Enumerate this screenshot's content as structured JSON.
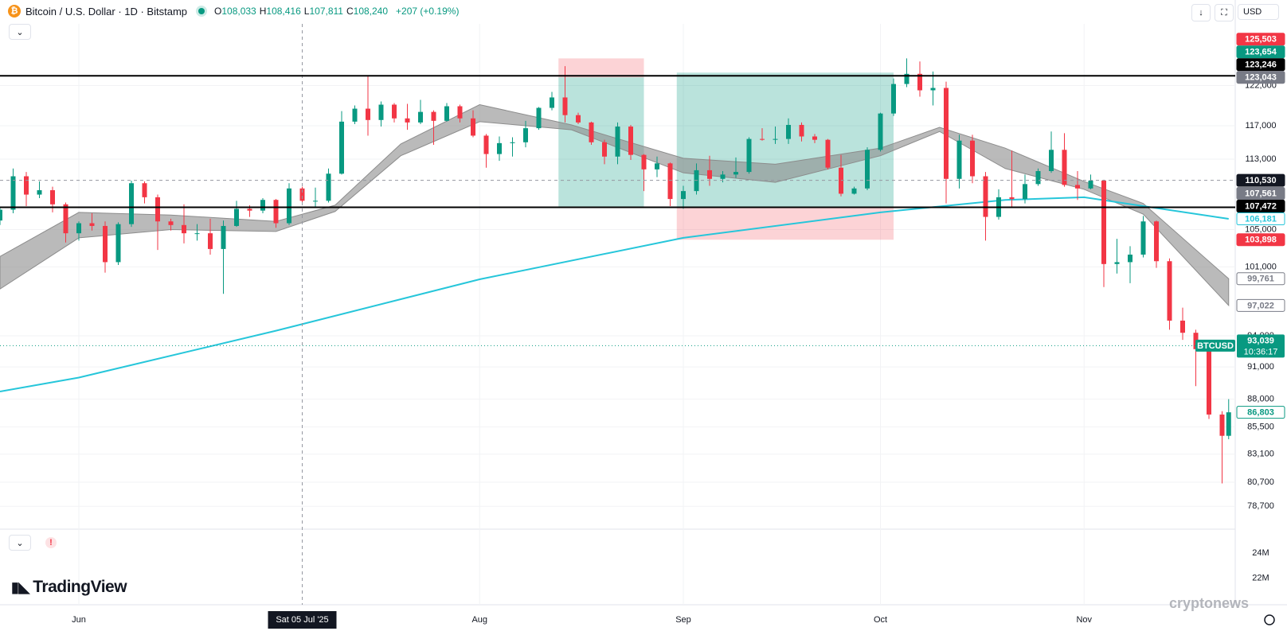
{
  "header": {
    "symbol": "Bitcoin / U.S. Dollar · 1D · Bitstamp",
    "ohlc": [
      {
        "key": "O",
        "value": "108,033"
      },
      {
        "key": "H",
        "value": "108,416"
      },
      {
        "key": "L",
        "value": "107,811"
      },
      {
        "key": "C",
        "value": "108,240"
      }
    ],
    "change": "+207 (+0.19%)",
    "currency": "USD"
  },
  "ui": {
    "logo": "TradingView",
    "watermark": "cryptonews"
  },
  "chart_data": {
    "type": "candlestick",
    "log_scale": true,
    "grid": true,
    "up_color": "#089981",
    "down_color": "#f23645",
    "xlim": [
      "2025-05-20",
      "2025-11-24"
    ],
    "xticks": [
      {
        "value": "2025-06-01",
        "label": "Jun"
      },
      {
        "value": "2025-08-01",
        "label": "Aug"
      },
      {
        "value": "2025-09-01",
        "label": "Sep"
      },
      {
        "value": "2025-10-01",
        "label": "Oct"
      },
      {
        "value": "2025-11-01",
        "label": "Nov"
      }
    ],
    "ylim": [
      76850,
      130100
    ],
    "yticks": [
      {
        "value": 122000,
        "label": "122,000"
      },
      {
        "value": 117000,
        "label": "117,000"
      },
      {
        "value": 113000,
        "label": "113,000"
      },
      {
        "value": 105000,
        "label": "105,000"
      },
      {
        "value": 101000,
        "label": "101,000"
      },
      {
        "value": 94000,
        "label": "94,000"
      },
      {
        "value": 91000,
        "label": "91,000"
      },
      {
        "value": 88000,
        "label": "88,000"
      },
      {
        "value": 85500,
        "label": "85,500"
      },
      {
        "value": 83100,
        "label": "83,100"
      },
      {
        "value": 80700,
        "label": "80,700"
      },
      {
        "value": 78700,
        "label": "78,700"
      }
    ],
    "volume_lim": [
      19900000,
      25900000
    ],
    "volume_ticks": [
      {
        "value": 24000000,
        "label": "24M"
      },
      {
        "value": 22000000,
        "label": "22M"
      }
    ],
    "x": [
      "2025-05-20",
      "2025-05-22",
      "2025-05-24",
      "2025-05-26",
      "2025-05-28",
      "2025-05-30",
      "2025-06-01",
      "2025-06-03",
      "2025-06-05",
      "2025-06-07",
      "2025-06-09",
      "2025-06-11",
      "2025-06-13",
      "2025-06-15",
      "2025-06-17",
      "2025-06-19",
      "2025-06-21",
      "2025-06-23",
      "2025-06-25",
      "2025-06-27",
      "2025-06-29",
      "2025-07-01",
      "2025-07-03",
      "2025-07-05",
      "2025-07-07",
      "2025-07-09",
      "2025-07-11",
      "2025-07-13",
      "2025-07-15",
      "2025-07-17",
      "2025-07-19",
      "2025-07-21",
      "2025-07-23",
      "2025-07-25",
      "2025-07-27",
      "2025-07-29",
      "2025-07-31",
      "2025-08-02",
      "2025-08-04",
      "2025-08-06",
      "2025-08-08",
      "2025-08-10",
      "2025-08-12",
      "2025-08-14",
      "2025-08-16",
      "2025-08-18",
      "2025-08-20",
      "2025-08-22",
      "2025-08-24",
      "2025-08-26",
      "2025-08-28",
      "2025-08-30",
      "2025-09-01",
      "2025-09-03",
      "2025-09-05",
      "2025-09-07",
      "2025-09-09",
      "2025-09-11",
      "2025-09-13",
      "2025-09-15",
      "2025-09-17",
      "2025-09-19",
      "2025-09-21",
      "2025-09-23",
      "2025-09-25",
      "2025-09-27",
      "2025-09-29",
      "2025-10-01",
      "2025-10-03",
      "2025-10-05",
      "2025-10-07",
      "2025-10-09",
      "2025-10-11",
      "2025-10-13",
      "2025-10-15",
      "2025-10-17",
      "2025-10-19",
      "2025-10-21",
      "2025-10-23",
      "2025-10-25",
      "2025-10-27",
      "2025-10-29",
      "2025-10-31",
      "2025-11-02",
      "2025-11-04",
      "2025-11-06",
      "2025-11-08",
      "2025-11-10",
      "2025-11-12",
      "2025-11-14",
      "2025-11-16",
      "2025-11-18",
      "2025-11-20",
      "2025-11-22",
      "2025-11-23"
    ],
    "open": [
      106000,
      107200,
      111000,
      108900,
      109400,
      107800,
      104600,
      105700,
      105400,
      101500,
      105600,
      110200,
      108600,
      105900,
      105500,
      104600,
      104600,
      102900,
      105400,
      107300,
      107100,
      108300,
      105700,
      109600,
      108200,
      108200,
      111300,
      117500,
      119100,
      117700,
      119600,
      117900,
      117400,
      118700,
      117600,
      119400,
      117900,
      115800,
      113600,
      114900,
      115000,
      116700,
      119200,
      120500,
      118300,
      117400,
      115000,
      113300,
      116900,
      113500,
      111800,
      112500,
      108400,
      109300,
      111700,
      110700,
      111200,
      111500,
      115400,
      115300,
      115400,
      117100,
      115700,
      115300,
      112000,
      109000,
      109600,
      114100,
      118500,
      122200,
      123500,
      121400,
      121700,
      110700,
      115200,
      111000,
      106400,
      108600,
      108400,
      110100,
      111600,
      114100,
      110000,
      109600,
      110500,
      101300,
      101500,
      102300,
      105900,
      101600,
      95500,
      94300,
      92700,
      86600,
      84700
    ],
    "high": [
      107500,
      111900,
      111500,
      110400,
      109800,
      108000,
      105900,
      106800,
      105900,
      105800,
      110500,
      110400,
      108900,
      106200,
      107800,
      105600,
      106200,
      106000,
      108200,
      107700,
      108500,
      108400,
      110200,
      109800,
      109700,
      111900,
      118800,
      119500,
      123200,
      120000,
      119800,
      119700,
      120200,
      118900,
      119800,
      119600,
      118900,
      116000,
      115700,
      115600,
      117600,
      119300,
      121200,
      124500,
      118600,
      117500,
      115300,
      117400,
      117100,
      113600,
      113300,
      112600,
      109900,
      112500,
      113400,
      111600,
      113200,
      115600,
      116700,
      116900,
      117900,
      117400,
      116000,
      115400,
      113500,
      109800,
      114400,
      118600,
      122900,
      125500,
      125100,
      123800,
      122500,
      115900,
      115900,
      111500,
      109500,
      114000,
      111200,
      111900,
      116300,
      116100,
      111600,
      111200,
      110600,
      104000,
      103200,
      106500,
      106000,
      101900,
      96800,
      94600,
      92900,
      86900,
      88000
    ],
    "low": [
      105500,
      106800,
      107600,
      108500,
      106900,
      103600,
      103800,
      104900,
      100400,
      101200,
      105300,
      107900,
      102800,
      104900,
      103500,
      103800,
      102300,
      98200,
      105300,
      106400,
      106800,
      105200,
      105500,
      107800,
      107500,
      108000,
      111200,
      117200,
      115800,
      116900,
      117400,
      116500,
      117200,
      114700,
      117500,
      117400,
      115600,
      112000,
      112800,
      113300,
      114400,
      116500,
      118900,
      117400,
      117200,
      114700,
      112400,
      112400,
      112900,
      109300,
      110900,
      107600,
      107300,
      108900,
      109900,
      110300,
      110800,
      111300,
      115200,
      114800,
      114800,
      115100,
      114900,
      111800,
      108700,
      108900,
      109400,
      113900,
      118200,
      121800,
      120600,
      119500,
      107900,
      109600,
      110200,
      103800,
      106100,
      107500,
      107900,
      109900,
      111400,
      109800,
      108300,
      109500,
      98900,
      100300,
      99300,
      102000,
      100900,
      94600,
      93600,
      89200,
      86200,
      80600,
      84400
    ],
    "close": [
      107200,
      111000,
      108900,
      109400,
      107800,
      104600,
      105700,
      105400,
      101500,
      105600,
      110200,
      108600,
      105900,
      105500,
      104600,
      104600,
      102900,
      105400,
      107300,
      107100,
      108300,
      105700,
      109600,
      108200,
      108200,
      111300,
      117500,
      119100,
      117700,
      119600,
      117900,
      117400,
      118700,
      117600,
      119400,
      117900,
      115800,
      113600,
      114900,
      115000,
      116700,
      119200,
      120500,
      118300,
      117400,
      115000,
      113300,
      116900,
      113500,
      111800,
      112500,
      108400,
      109300,
      111700,
      110700,
      111200,
      111500,
      115400,
      115300,
      115400,
      117100,
      115700,
      115300,
      112000,
      109000,
      109600,
      114100,
      118500,
      122200,
      123500,
      121400,
      121700,
      110700,
      115200,
      111000,
      106400,
      108600,
      108400,
      110100,
      111600,
      114100,
      110000,
      109600,
      110500,
      101300,
      101500,
      102300,
      105900,
      101600,
      95500,
      94300,
      92700,
      86600,
      84700,
      86800
    ],
    "ribbon": {
      "color": "#8c8c8c",
      "x": [
        "2025-05-20",
        "2025-06-01",
        "2025-06-15",
        "2025-07-01",
        "2025-07-10",
        "2025-07-20",
        "2025-08-01",
        "2025-08-15",
        "2025-09-01",
        "2025-09-15",
        "2025-10-01",
        "2025-10-10",
        "2025-10-20",
        "2025-11-01",
        "2025-11-10",
        "2025-11-23"
      ],
      "upper": [
        102100,
        106900,
        106600,
        105900,
        107700,
        114800,
        119600,
        117100,
        113100,
        112400,
        114300,
        116800,
        114300,
        110400,
        107900,
        99761
      ],
      "lower": [
        98700,
        104100,
        105000,
        104800,
        107000,
        113400,
        117500,
        116500,
        111400,
        110300,
        113400,
        116300,
        111900,
        109500,
        106700,
        97022
      ]
    },
    "sma": {
      "color": "#26c6da",
      "x": [
        "2025-05-20",
        "2025-06-01",
        "2025-07-01",
        "2025-08-01",
        "2025-09-01",
        "2025-10-01",
        "2025-10-20",
        "2025-11-01",
        "2025-11-23"
      ],
      "values": [
        88700,
        90000,
        94500,
        99700,
        104100,
        106900,
        108300,
        108600,
        106181
      ]
    },
    "positions": [
      {
        "start": "2025-08-13",
        "end": "2025-08-26",
        "entry": 123043,
        "stop": 125503,
        "target": 107561
      },
      {
        "start": "2025-08-31",
        "end": "2025-10-03",
        "entry": 107472,
        "stop": 103898,
        "target": 123654
      }
    ],
    "price_tags": [
      {
        "value": 125503,
        "label": "125,503",
        "bg": "#f23645",
        "fg": "#ffffff"
      },
      {
        "value": 123654,
        "label": "123,654",
        "bg": "#089981",
        "fg": "#ffffff"
      },
      {
        "value": 123246,
        "label": "123,246",
        "bg": "#000000",
        "fg": "#ffffff",
        "line": "solid"
      },
      {
        "value": 123043,
        "label": "123,043",
        "bg": "#787b86",
        "fg": "#ffffff"
      },
      {
        "value": 110530,
        "label": "110,530",
        "bg": "#131722",
        "fg": "#ffffff",
        "line": "dashed"
      },
      {
        "value": 107561,
        "label": "107,561",
        "bg": "#787b86",
        "fg": "#ffffff"
      },
      {
        "value": 107472,
        "label": "107,472",
        "bg": "#000000",
        "fg": "#ffffff",
        "line": "solid"
      },
      {
        "value": 106181,
        "label": "106,181",
        "bg": "#ffffff",
        "fg": "#26c6da"
      },
      {
        "value": 103898,
        "label": "103,898",
        "bg": "#f23645",
        "fg": "#ffffff"
      },
      {
        "value": 99761,
        "label": "99,761",
        "bg": "#ffffff",
        "fg": "#787b86"
      },
      {
        "value": 97022,
        "label": "97,022",
        "bg": "#ffffff",
        "fg": "#787b86"
      },
      {
        "value": 86803,
        "label": "86,803",
        "bg": "#ffffff",
        "fg": "#089981"
      }
    ],
    "last_price": {
      "symbol": "BTCUSD",
      "value": 93039,
      "label": "93,039",
      "countdown": "10:36:17",
      "color": "#089981"
    },
    "crosshair": {
      "value": "2025-07-05",
      "label": "Sat 05 Jul '25"
    }
  }
}
